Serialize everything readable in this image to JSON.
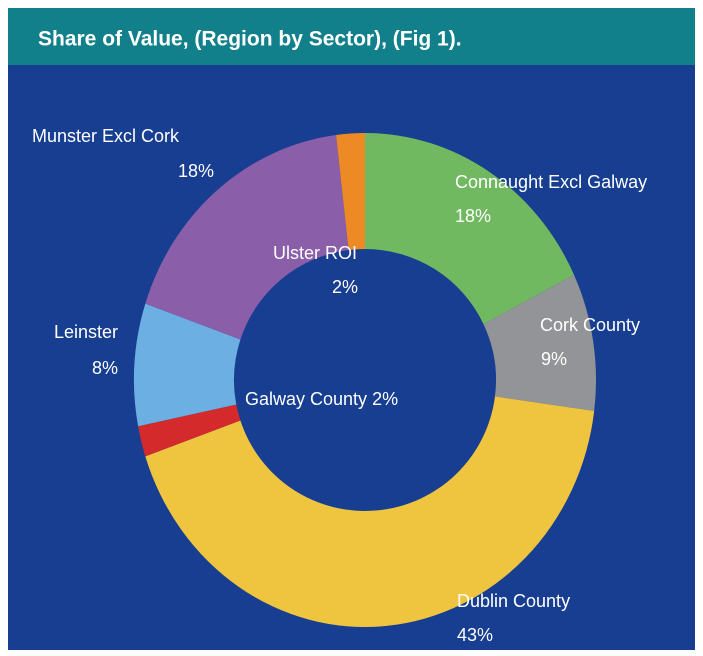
{
  "chart_data": {
    "type": "donut",
    "title": "Share of Value, (Region by Sector), (Fig 1).",
    "categories": [
      "Connaught Excl Galway",
      "Cork County",
      "Dublin County",
      "Galway County",
      "Leinster",
      "Munster Excl Cork",
      "Ulster ROI"
    ],
    "values": [
      18,
      9,
      43,
      2,
      8,
      18,
      2
    ],
    "value_labels": [
      "18%",
      "9%",
      "43%",
      "2%",
      "8%",
      "18%",
      "2%"
    ],
    "colors": [
      "#70b960",
      "#939497",
      "#efc540",
      "#d52a2c",
      "#6cafe2",
      "#8a5ea8",
      "#ee8a26"
    ]
  }
}
